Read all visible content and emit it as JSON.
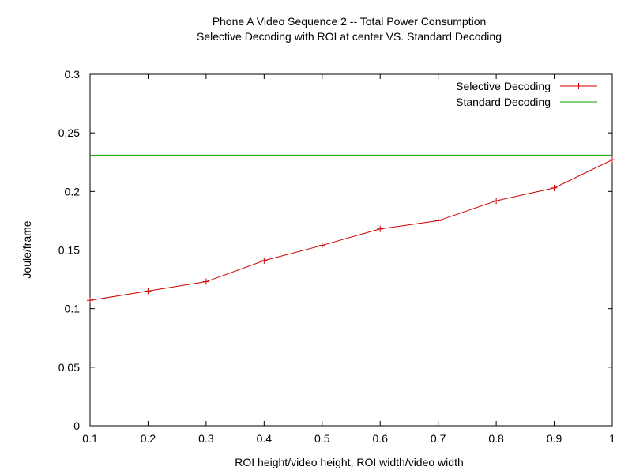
{
  "chart_data": {
    "type": "line",
    "title": "Phone A Video Sequence 2 -- Total Power Consumption",
    "subtitle": "Selective Decoding with ROI at center VS. Standard Decoding",
    "xlabel": "ROI height/video height, ROI width/video width",
    "ylabel": "Joule/frame",
    "xlim": [
      0.1,
      1
    ],
    "ylim": [
      0,
      0.3
    ],
    "x_ticks": [
      "0.1",
      "0.2",
      "0.3",
      "0.4",
      "0.5",
      "0.6",
      "0.7",
      "0.8",
      "0.9",
      "1"
    ],
    "y_ticks": [
      "0",
      "0.05",
      "0.1",
      "0.15",
      "0.2",
      "0.25",
      "0.3"
    ],
    "grid": false,
    "legend_position": "top-right",
    "series": [
      {
        "name": "Selective Decoding",
        "color": "#cc0000",
        "marker": "plus",
        "x": [
          0.1,
          0.2,
          0.3,
          0.4,
          0.5,
          0.6,
          0.7,
          0.8,
          0.9,
          1.0
        ],
        "y": [
          0.107,
          0.115,
          0.123,
          0.141,
          0.154,
          0.168,
          0.175,
          0.192,
          0.203,
          0.227
        ]
      },
      {
        "name": "Standard Decoding",
        "color": "#00a000",
        "marker": "none",
        "x": [
          0.1,
          1.0
        ],
        "y": [
          0.231,
          0.231
        ]
      }
    ]
  }
}
